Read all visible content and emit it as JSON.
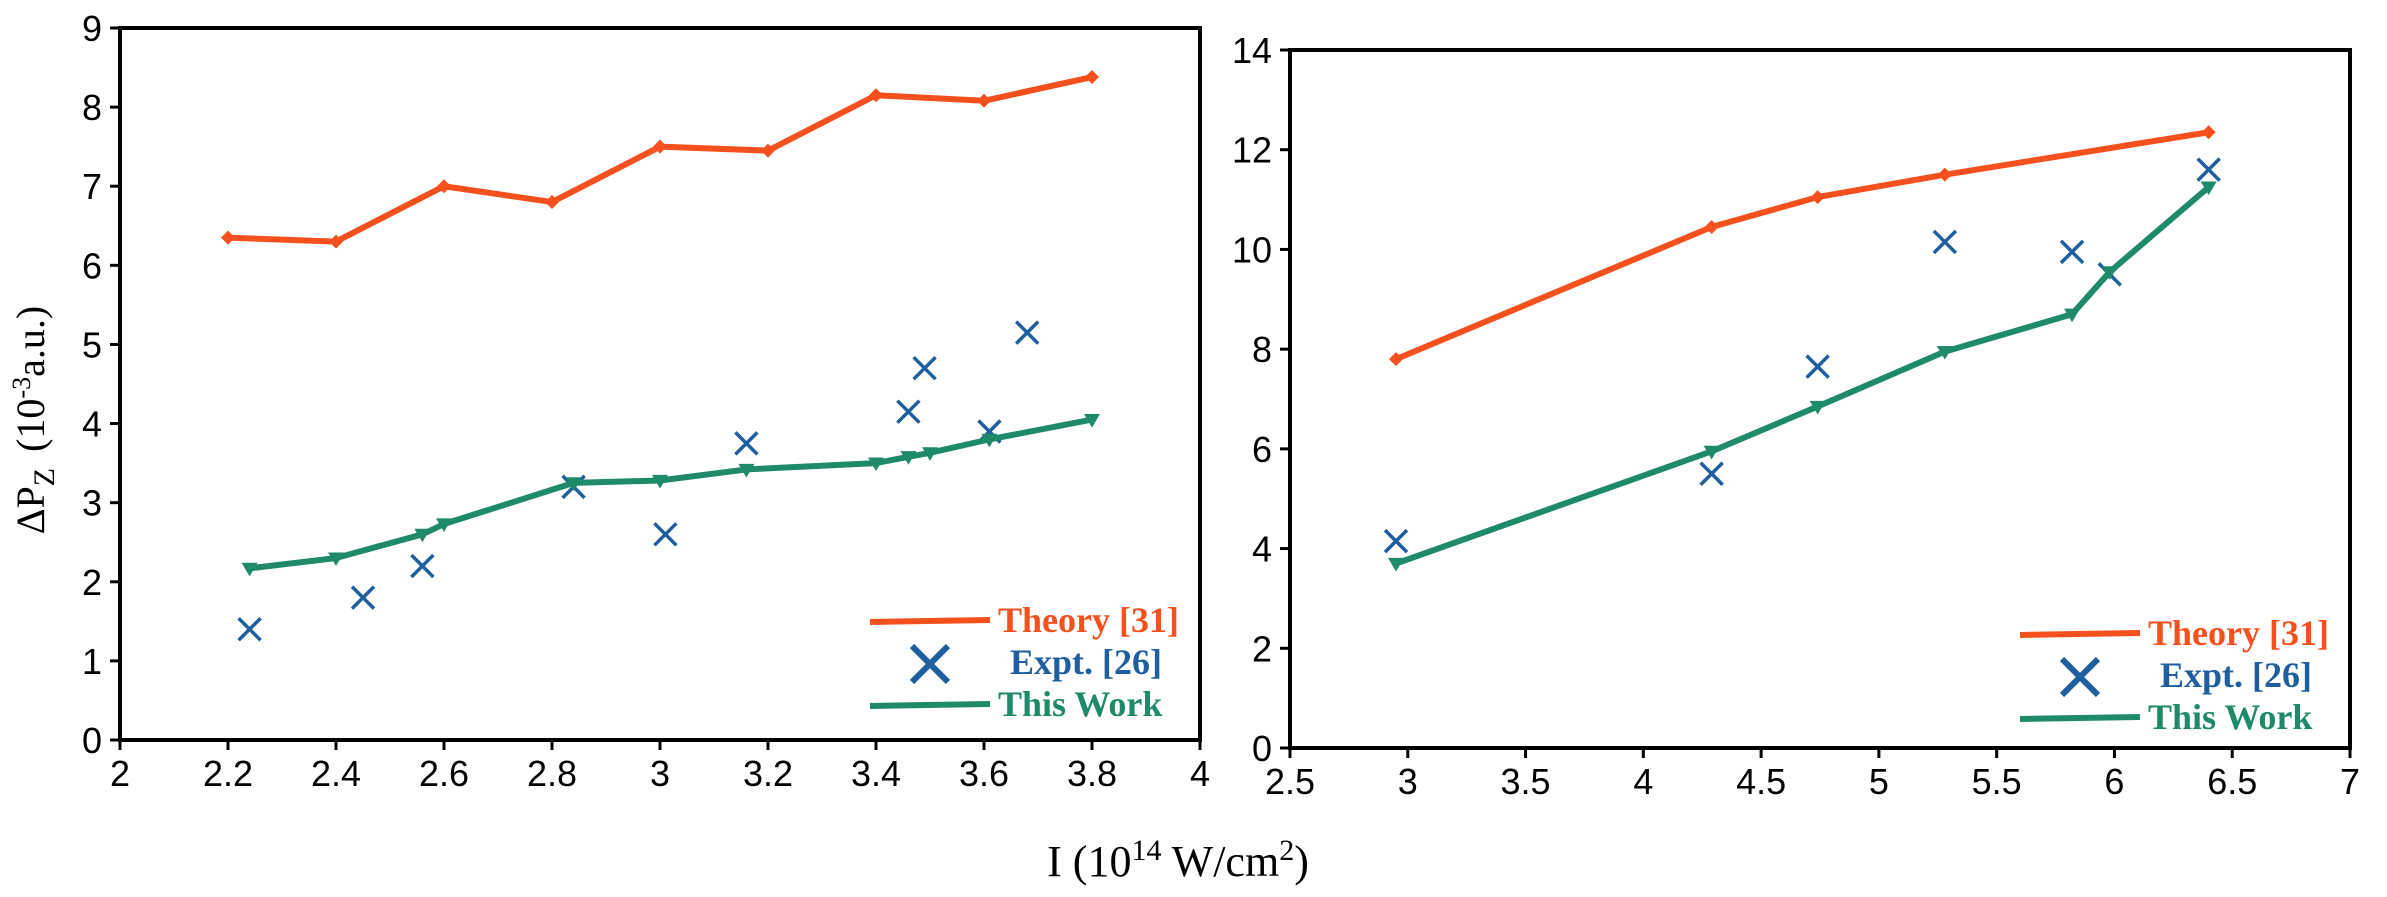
{
  "colors": {
    "theory": "#f4511e",
    "expt": "#1f5fa0",
    "this_work": "#1f8a6a",
    "axis": "#000000"
  },
  "shared": {
    "ylabel_main": "ΔP",
    "ylabel_sub": "Z",
    "ylabel_units_pre": "(10",
    "ylabel_units_exp": "-3",
    "ylabel_units_post": "a.u.)",
    "xlabel_pre": "I (10",
    "xlabel_exp": "14",
    "xlabel_mid": " W/cm",
    "xlabel_exp2": "2",
    "xlabel_post": ")"
  },
  "chart_data": [
    {
      "type": "line",
      "xlim": [
        2,
        4
      ],
      "ylim": [
        0,
        9
      ],
      "xticks": [
        "2",
        "2.2",
        "2.4",
        "2.6",
        "2.8",
        "3",
        "3.2",
        "3.4",
        "3.6",
        "3.8",
        "4"
      ],
      "yticks": [
        "0",
        "1",
        "2",
        "3",
        "4",
        "5",
        "6",
        "7",
        "8",
        "9"
      ],
      "legend_position": "bottom-right",
      "series": [
        {
          "name": "Theory [31]",
          "style": "line-diamond",
          "x": [
            2.2,
            2.4,
            2.6,
            2.8,
            3.0,
            3.2,
            3.4,
            3.6,
            3.8
          ],
          "y": [
            6.35,
            6.3,
            7.0,
            6.8,
            7.5,
            7.45,
            8.15,
            8.08,
            8.38
          ]
        },
        {
          "name": "Expt. [26]",
          "style": "cross",
          "x": [
            2.24,
            2.45,
            2.56,
            2.84,
            3.01,
            3.16,
            3.46,
            3.49,
            3.61,
            3.68
          ],
          "y": [
            1.4,
            1.8,
            2.2,
            3.2,
            2.6,
            3.75,
            4.15,
            4.7,
            3.9,
            5.15
          ]
        },
        {
          "name": "This Work",
          "style": "line-triangle",
          "x": [
            2.24,
            2.4,
            2.56,
            2.6,
            2.84,
            3.0,
            3.16,
            3.4,
            3.46,
            3.5,
            3.61,
            3.8
          ],
          "y": [
            2.17,
            2.3,
            2.6,
            2.73,
            3.25,
            3.28,
            3.42,
            3.5,
            3.58,
            3.63,
            3.8,
            4.05
          ]
        }
      ]
    },
    {
      "type": "line",
      "xlim": [
        2.5,
        7
      ],
      "ylim": [
        0,
        14
      ],
      "xticks": [
        "2.5",
        "3",
        "3.5",
        "4",
        "4.5",
        "5",
        "5.5",
        "6",
        "6.5",
        "7"
      ],
      "yticks": [
        "0",
        "2",
        "4",
        "6",
        "8",
        "10",
        "12",
        "14"
      ],
      "legend_position": "bottom-right",
      "series": [
        {
          "name": "Theory [31]",
          "style": "line-diamond",
          "x": [
            2.95,
            4.29,
            4.74,
            5.28,
            6.4
          ],
          "y": [
            7.8,
            10.45,
            11.05,
            11.5,
            12.35
          ]
        },
        {
          "name": "Expt. [26]",
          "style": "cross",
          "x": [
            2.95,
            4.29,
            4.74,
            5.28,
            5.82,
            5.98,
            6.4
          ],
          "y": [
            4.15,
            5.5,
            7.65,
            10.15,
            9.95,
            9.5,
            11.6
          ]
        },
        {
          "name": "This Work",
          "style": "line-triangle",
          "x": [
            2.95,
            4.29,
            4.74,
            5.28,
            5.82,
            5.98,
            6.4
          ],
          "y": [
            3.7,
            5.95,
            6.85,
            7.95,
            8.7,
            9.55,
            11.25
          ]
        }
      ]
    }
  ]
}
